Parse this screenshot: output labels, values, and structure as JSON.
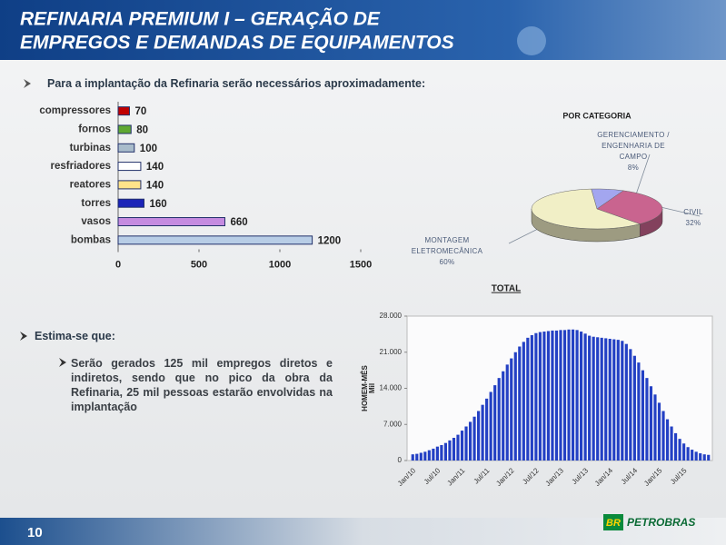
{
  "header": {
    "title": [
      "REFINARIA PREMIUM I – GERAÇÃO DE",
      "EMPREGOS E DEMANDAS DE EQUIPAMENTOS"
    ]
  },
  "bullets": [
    "Para a implantação da Refinaria serão necessários aproximadamente:",
    "Estima-se que:",
    "Serão gerados 125 mil empregos diretos e indiretos, sendo que no pico da obra da Refinaria, 25 mil pessoas estarão envolvidas na implantação"
  ],
  "chart_data": [
    {
      "type": "bar",
      "orientation": "horizontal",
      "categories": [
        "compressores",
        "fornos",
        "turbinas",
        "resfriadores",
        "reatores",
        "torres",
        "vasos",
        "bombas"
      ],
      "values": [
        70,
        80,
        100,
        140,
        140,
        160,
        660,
        1200
      ],
      "colors": [
        "#c00000",
        "#5fa832",
        "#a9bccb",
        "#ffffff",
        "#ffe38a",
        "#1b24b8",
        "#c58be0",
        "#b8cde6"
      ],
      "xlim": [
        0,
        1500
      ],
      "xticks": [
        0,
        500,
        1000,
        1500
      ]
    },
    {
      "type": "pie",
      "title": "POR CATEGORIA",
      "categories": [
        "GERENCIAMENTO / ENGENHARIA DE CAMPO",
        "CIVIL",
        "MONTAGEM ELETROMECÂNICA"
      ],
      "values": [
        8,
        32,
        60
      ],
      "value_labels": [
        "8%",
        "32%",
        "60%"
      ],
      "colors": [
        "#a3a6ef",
        "#c9648f",
        "#f1efc6"
      ]
    },
    {
      "type": "bar",
      "orientation": "vertical",
      "title": "TOTAL",
      "y_label": [
        "HOMEM-MÊS",
        "Mil"
      ],
      "color": "#2340c4",
      "categories": [
        "Jan/10",
        null,
        null,
        null,
        null,
        null,
        "Jul/10",
        null,
        null,
        null,
        null,
        null,
        "Jan/11",
        null,
        null,
        null,
        null,
        null,
        "Jul/11",
        null,
        null,
        null,
        null,
        null,
        "Jan/12",
        null,
        null,
        null,
        null,
        null,
        "Jul/12",
        null,
        null,
        null,
        null,
        null,
        "Jan/13",
        null,
        null,
        null,
        null,
        null,
        "Jul/13",
        null,
        null,
        null,
        null,
        null,
        "Jan/14",
        null,
        null,
        null,
        null,
        null,
        "Jul/14",
        null,
        null,
        null,
        null,
        null,
        "Jan/15",
        null,
        null,
        null,
        null,
        null,
        "Jul/15",
        null,
        null,
        null,
        null,
        null,
        null
      ],
      "values": [
        1200,
        1300,
        1500,
        1700,
        2000,
        2300,
        2700,
        3000,
        3400,
        3900,
        4400,
        5000,
        5800,
        6600,
        7500,
        8500,
        9600,
        10800,
        12000,
        13300,
        14600,
        16000,
        17300,
        18600,
        19800,
        21000,
        22100,
        23000,
        23800,
        24300,
        24700,
        24900,
        25000,
        25100,
        25200,
        25200,
        25300,
        25300,
        25400,
        25400,
        25300,
        25000,
        24600,
        24200,
        24000,
        23900,
        23800,
        23700,
        23600,
        23500,
        23400,
        23200,
        22600,
        21600,
        20300,
        19000,
        17500,
        16000,
        14400,
        12800,
        11200,
        9600,
        8000,
        6600,
        5300,
        4200,
        3300,
        2600,
        2100,
        1700,
        1400,
        1200,
        1100
      ],
      "ylim": [
        0,
        28000
      ],
      "yticks": [
        0,
        {
          "value": 7000,
          "label": "7.000"
        },
        {
          "value": 14000,
          "label": "14.000"
        },
        {
          "value": 21000,
          "label": "21.000"
        },
        {
          "value": 28000,
          "label": "28.000"
        }
      ]
    }
  ],
  "footer": {
    "page": "10",
    "logo_mark": "BR",
    "logo": "PETROBRAS"
  }
}
